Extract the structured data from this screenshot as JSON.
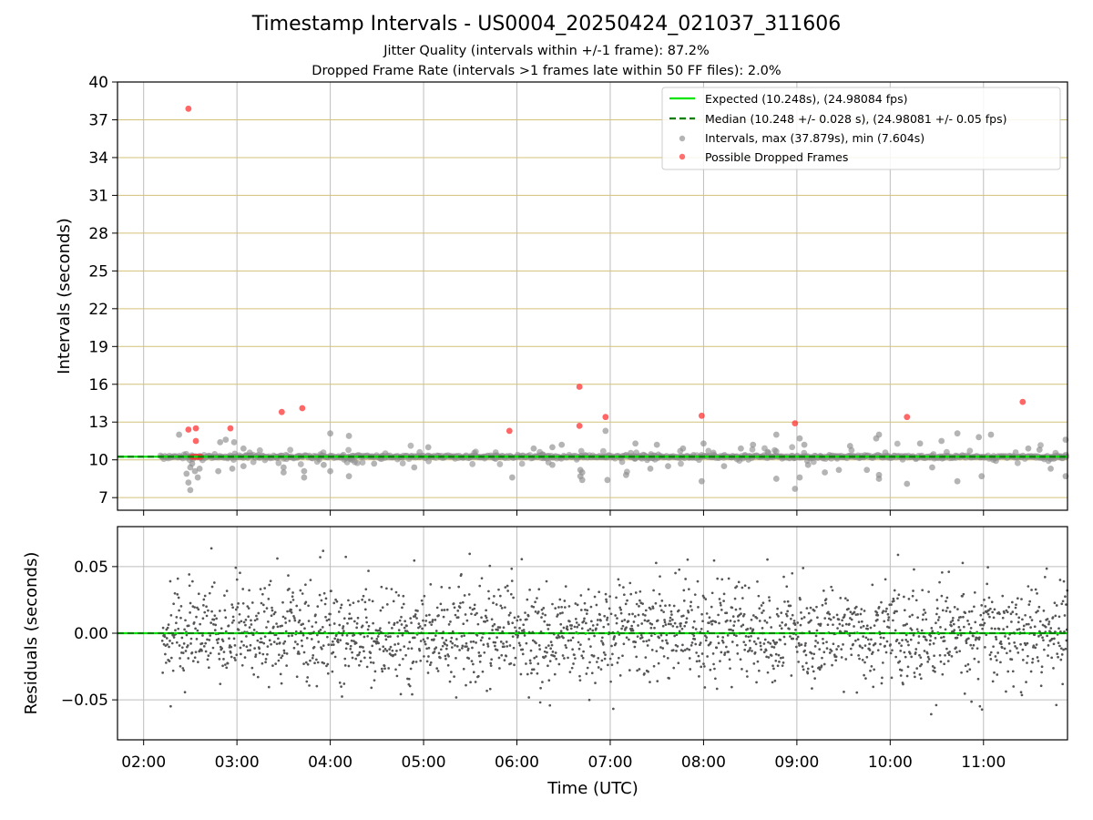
{
  "figure": {
    "title": "Timestamp Intervals - US0004_20250424_021037_311606",
    "subtitle_jitter": "Jitter Quality (intervals within +/-1 frame): 87.2%",
    "subtitle_dropped": "Dropped Frame Rate (intervals >1 frames late within 50 FF files): 2.0%"
  },
  "colors": {
    "expected": "#00e600",
    "median": "#008000",
    "intervals": "#8c8c8c",
    "dropped": "#ff3333",
    "hgrid_top": "#d4c17a",
    "vgrid": "#bdbdbd",
    "residual_points": "#555555"
  },
  "chart_data": [
    {
      "type": "scatter",
      "ylabel": "Intervals (seconds)",
      "xlabel": "",
      "x_unit": "hours UTC",
      "xlim": [
        1.72,
        11.9
      ],
      "ylim": [
        6,
        40
      ],
      "yticks": [
        7,
        10,
        13,
        16,
        19,
        22,
        25,
        28,
        31,
        34,
        37,
        40
      ],
      "grid": true,
      "legend_position": "top-right",
      "expected_interval": 10.248,
      "median_interval": 10.248,
      "legend": {
        "expected": "Expected (10.248s), (24.98084 fps)",
        "median": "Median (10.248 +/- 0.028 s), (24.98081 +/- 0.05 fps)",
        "intervals": "Intervals, max (37.879s), min (7.604s)",
        "dropped": "Possible Dropped Frames"
      },
      "series": [
        {
          "name": "Intervals, max (37.879s), min (7.604s)",
          "points": [
            [
              2.38,
              12.0
            ],
            [
              2.46,
              8.9
            ],
            [
              2.48,
              8.2
            ],
            [
              2.5,
              7.6
            ],
            [
              2.5,
              9.4
            ],
            [
              2.52,
              9.7
            ],
            [
              2.55,
              9.1
            ],
            [
              2.58,
              8.6
            ],
            [
              2.6,
              9.3
            ],
            [
              2.8,
              9.1
            ],
            [
              2.82,
              11.4
            ],
            [
              2.88,
              11.6
            ],
            [
              2.95,
              9.3
            ],
            [
              2.97,
              11.4
            ],
            [
              3.07,
              9.5
            ],
            [
              3.07,
              10.9
            ],
            [
              3.5,
              9.0
            ],
            [
              3.5,
              9.4
            ],
            [
              3.72,
              9.1
            ],
            [
              3.72,
              8.6
            ],
            [
              3.93,
              9.6
            ],
            [
              4.0,
              12.1
            ],
            [
              4.0,
              9.1
            ],
            [
              4.2,
              11.9
            ],
            [
              4.2,
              8.7
            ],
            [
              4.47,
              9.7
            ],
            [
              4.9,
              9.4
            ],
            [
              5.05,
              11.0
            ],
            [
              5.95,
              8.6
            ],
            [
              6.18,
              10.9
            ],
            [
              6.38,
              9.6
            ],
            [
              6.38,
              11.0
            ],
            [
              6.48,
              11.2
            ],
            [
              6.68,
              9.2
            ],
            [
              6.68,
              8.7
            ],
            [
              6.7,
              9.0
            ],
            [
              6.7,
              8.4
            ],
            [
              6.95,
              12.3
            ],
            [
              6.97,
              8.4
            ],
            [
              7.17,
              8.8
            ],
            [
              7.27,
              11.3
            ],
            [
              7.43,
              9.3
            ],
            [
              7.5,
              11.2
            ],
            [
              7.62,
              9.5
            ],
            [
              7.78,
              10.9
            ],
            [
              7.98,
              8.3
            ],
            [
              8.0,
              11.3
            ],
            [
              8.22,
              9.5
            ],
            [
              8.4,
              10.9
            ],
            [
              8.53,
              11.2
            ],
            [
              8.78,
              12.0
            ],
            [
              8.78,
              8.5
            ],
            [
              8.98,
              7.7
            ],
            [
              9.03,
              8.6
            ],
            [
              9.03,
              11.7
            ],
            [
              9.08,
              11.2
            ],
            [
              9.12,
              9.6
            ],
            [
              9.3,
              9.0
            ],
            [
              9.45,
              9.2
            ],
            [
              9.57,
              11.1
            ],
            [
              9.75,
              9.2
            ],
            [
              9.85,
              11.7
            ],
            [
              9.88,
              12.0
            ],
            [
              9.88,
              8.8
            ],
            [
              9.88,
              8.5
            ],
            [
              10.18,
              8.1
            ],
            [
              10.32,
              11.3
            ],
            [
              10.45,
              9.4
            ],
            [
              10.55,
              11.5
            ],
            [
              10.72,
              12.1
            ],
            [
              10.72,
              8.3
            ],
            [
              10.95,
              11.8
            ],
            [
              10.98,
              8.7
            ],
            [
              11.08,
              12.0
            ],
            [
              11.48,
              10.9
            ],
            [
              11.6,
              10.8
            ],
            [
              11.88,
              11.6
            ],
            [
              11.88,
              8.7
            ],
            [
              11.72,
              9.3
            ]
          ]
        },
        {
          "name": "Possible Dropped Frames",
          "points": [
            [
              2.48,
              37.879
            ],
            [
              2.48,
              12.4
            ],
            [
              2.56,
              12.5
            ],
            [
              2.56,
              11.5
            ],
            [
              2.93,
              12.5
            ],
            [
              3.48,
              13.8
            ],
            [
              3.7,
              14.1
            ],
            [
              5.92,
              12.3
            ],
            [
              6.67,
              15.8
            ],
            [
              6.67,
              12.7
            ],
            [
              6.95,
              13.4
            ],
            [
              7.98,
              13.5
            ],
            [
              8.98,
              12.9
            ],
            [
              10.18,
              13.4
            ],
            [
              11.42,
              14.6
            ],
            [
              2.52,
              10.24
            ],
            [
              2.55,
              10.24
            ],
            [
              2.58,
              10.24
            ],
            [
              2.61,
              10.24
            ]
          ]
        }
      ]
    },
    {
      "type": "scatter",
      "ylabel": "Residuals (seconds)",
      "xlabel": "Time (UTC)",
      "xlim": [
        1.72,
        11.9
      ],
      "ylim": [
        -0.08,
        0.08
      ],
      "yticks": [
        -0.05,
        0.0,
        0.05
      ],
      "ytick_labels": [
        "−0.05",
        "0.00",
        "0.05"
      ],
      "xticks": [
        2,
        3,
        4,
        5,
        6,
        7,
        8,
        9,
        10,
        11
      ],
      "xtick_labels": [
        "02:00",
        "03:00",
        "04:00",
        "05:00",
        "06:00",
        "07:00",
        "08:00",
        "09:00",
        "10:00",
        "11:00"
      ],
      "grid": true,
      "residual_range": {
        "x_start": 2.2,
        "x_end": 11.9,
        "typical_spread": 0.03,
        "max_abs": 0.075
      }
    }
  ]
}
